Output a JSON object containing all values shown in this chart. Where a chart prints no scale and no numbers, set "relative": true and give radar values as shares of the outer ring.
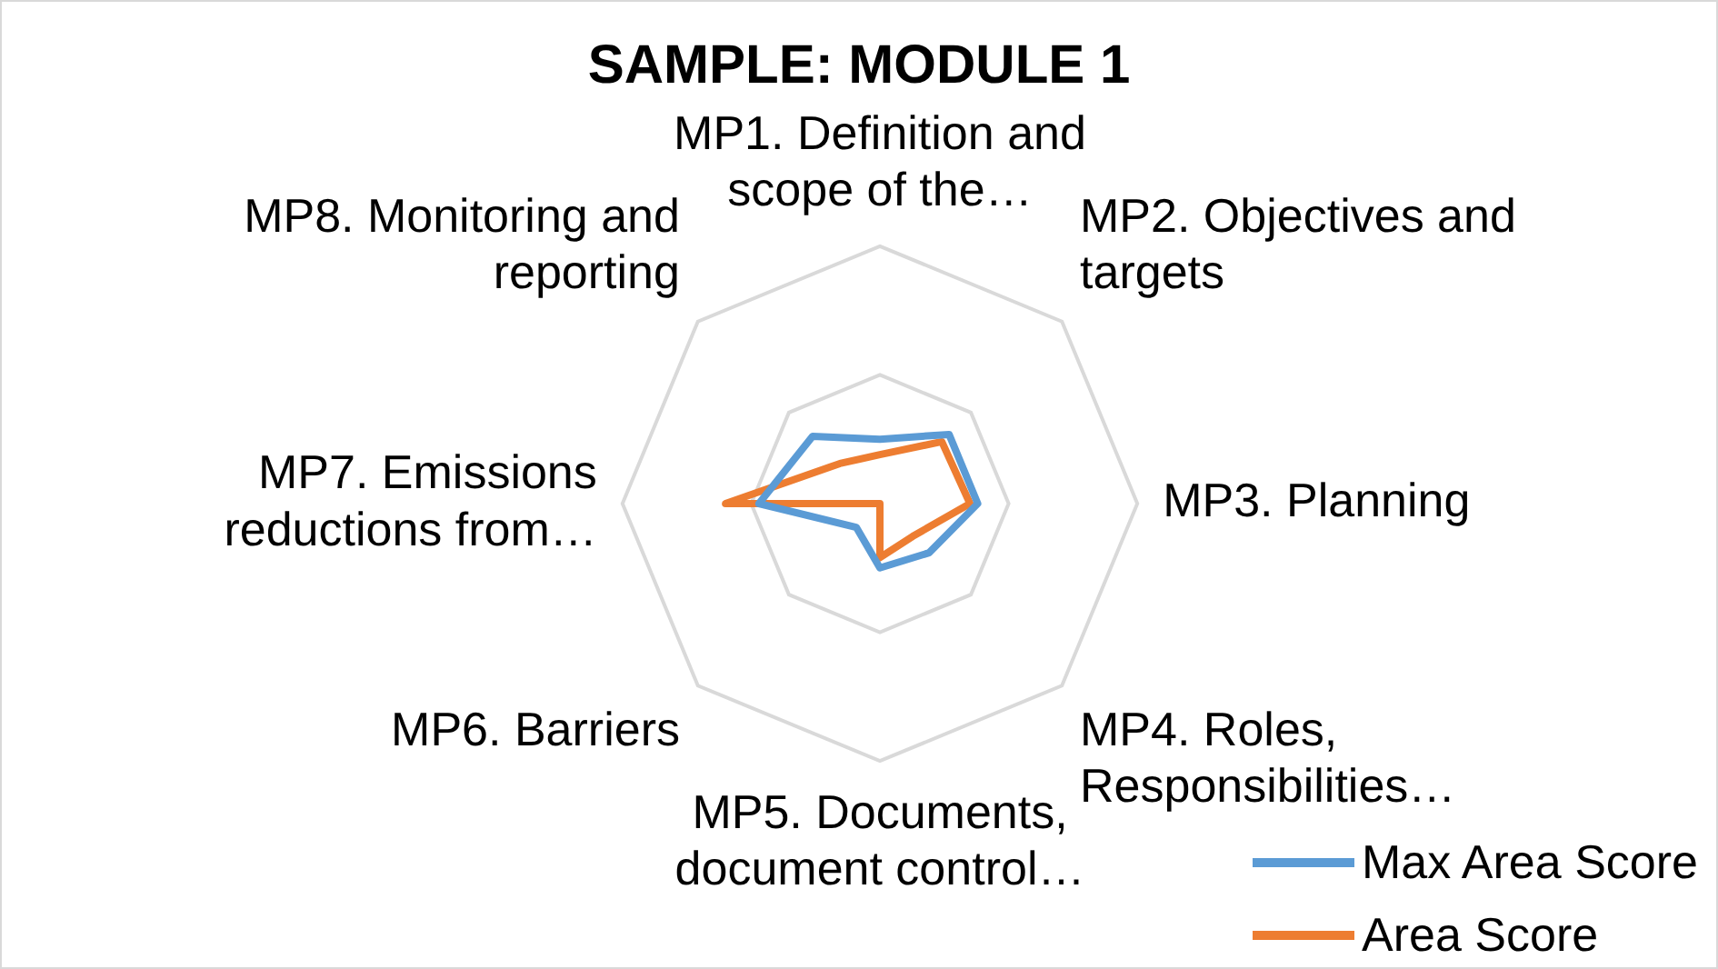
{
  "chart_data": {
    "type": "radar",
    "title": "SAMPLE: MODULE 1",
    "relative": true,
    "grid": true,
    "legend": "bottom right",
    "categories": [
      "MP1. Definition and scope of the…",
      "MP2. Objectives and targets",
      "MP3. Planning",
      "MP4. Roles, Responsibilities…",
      "MP5. Documents, document control…",
      "MP6. Barriers",
      "MP7. Emissions reductions from…",
      "MP8. Monitoring and reporting"
    ],
    "series": [
      {
        "name": "Max Area Score",
        "color": "#5b9bd5",
        "values": [
          0.25,
          0.38,
          0.38,
          0.27,
          0.25,
          0.13,
          0.47,
          0.37
        ]
      },
      {
        "name": "Area Score",
        "color": "#ed7d31",
        "values": [
          0.19,
          0.34,
          0.35,
          0.18,
          0.21,
          0,
          0.6,
          0.22
        ]
      }
    ]
  }
}
